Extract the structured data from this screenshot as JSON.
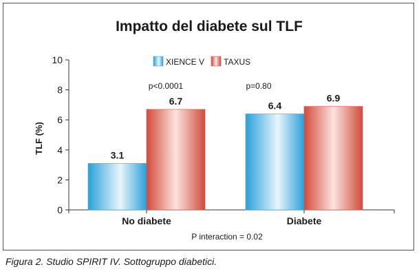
{
  "chart_data": {
    "type": "bar",
    "title": "Impatto del diabete sul TLF",
    "xlabel": "",
    "ylabel": "TLF (%)",
    "ylim": [
      0,
      10
    ],
    "yticks": [
      0,
      2,
      4,
      6,
      8,
      10
    ],
    "grid": false,
    "legend_position": "top-center",
    "categories": [
      "No diabete",
      "Diabete"
    ],
    "series": [
      {
        "name": "XIENCE V",
        "values": [
          3.1,
          6.4
        ],
        "labels": [
          "3.1",
          "6.4"
        ],
        "color": "#39aee0"
      },
      {
        "name": "TAXUS",
        "values": [
          6.7,
          6.9
        ],
        "labels": [
          "6.7",
          "6.9"
        ],
        "color": "#d9574a"
      }
    ],
    "annotations": [
      "p<0.0001",
      "p=0.80",
      "P interaction = 0.02"
    ]
  },
  "caption": "Figura 2. Studio SPIRIT IV. Sottogruppo diabetici."
}
